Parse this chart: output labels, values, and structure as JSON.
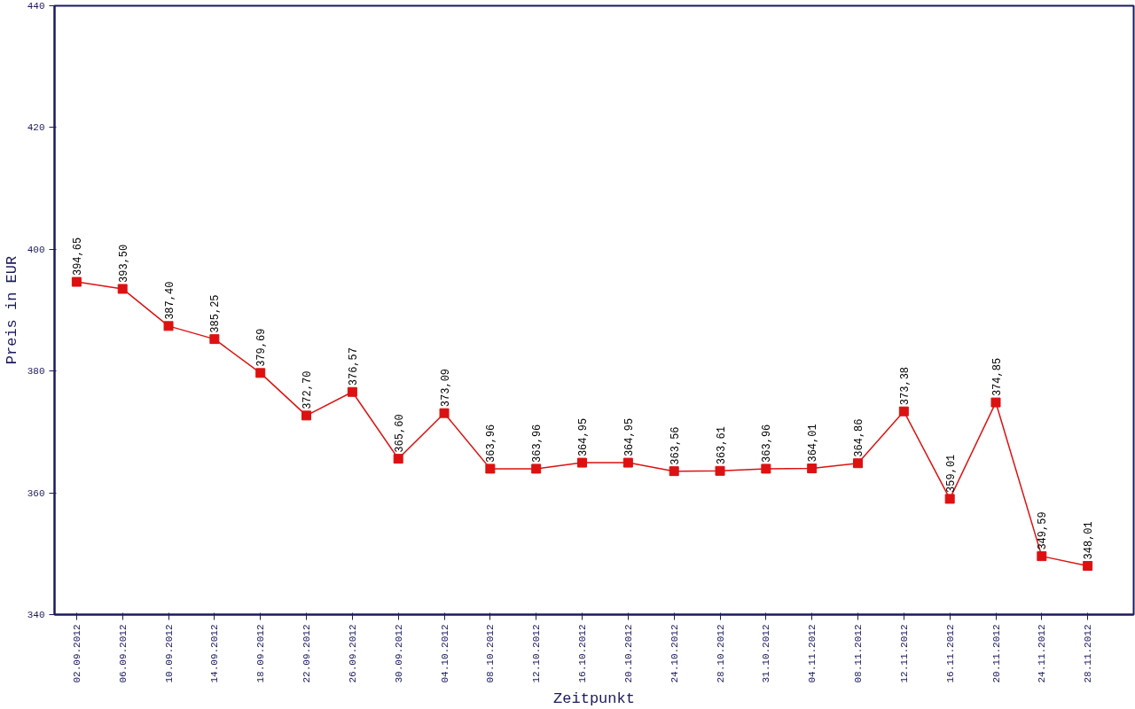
{
  "chart_data": {
    "type": "line",
    "xlabel": "Zeitpunkt",
    "ylabel": "Preis in EUR",
    "categories": [
      "02.09.2012",
      "06.09.2012",
      "10.09.2012",
      "14.09.2012",
      "18.09.2012",
      "22.09.2012",
      "26.09.2012",
      "30.09.2012",
      "04.10.2012",
      "08.10.2012",
      "12.10.2012",
      "16.10.2012",
      "20.10.2012",
      "24.10.2012",
      "28.10.2012",
      "31.10.2012",
      "04.11.2012",
      "08.11.2012",
      "12.11.2012",
      "16.11.2012",
      "20.11.2012",
      "24.11.2012",
      "28.11.2012"
    ],
    "series": [
      {
        "color": "#dd1111",
        "values": [
          394.65,
          393.5,
          387.4,
          385.25,
          379.69,
          372.7,
          376.57,
          365.6,
          373.09,
          363.96,
          363.96,
          364.95,
          364.95,
          363.56,
          363.61,
          363.96,
          364.01,
          364.86,
          373.38,
          359.01,
          374.85,
          349.59,
          348.01
        ],
        "value_labels": [
          "394,65",
          "393,50",
          "387,40",
          "385,25",
          "379,69",
          "372,70",
          "376,57",
          "365,60",
          "373,09",
          "363,96",
          "363,96",
          "364,95",
          "364,95",
          "363,56",
          "363,61",
          "363,96",
          "364,01",
          "364,86",
          "373,38",
          "359,01",
          "374,85",
          "349,59",
          "348,01"
        ]
      }
    ],
    "ylim": [
      340,
      440
    ],
    "yticks": [
      340,
      360,
      380,
      400,
      420,
      440
    ],
    "grid": false,
    "marker": "square",
    "line_style": "solid"
  }
}
